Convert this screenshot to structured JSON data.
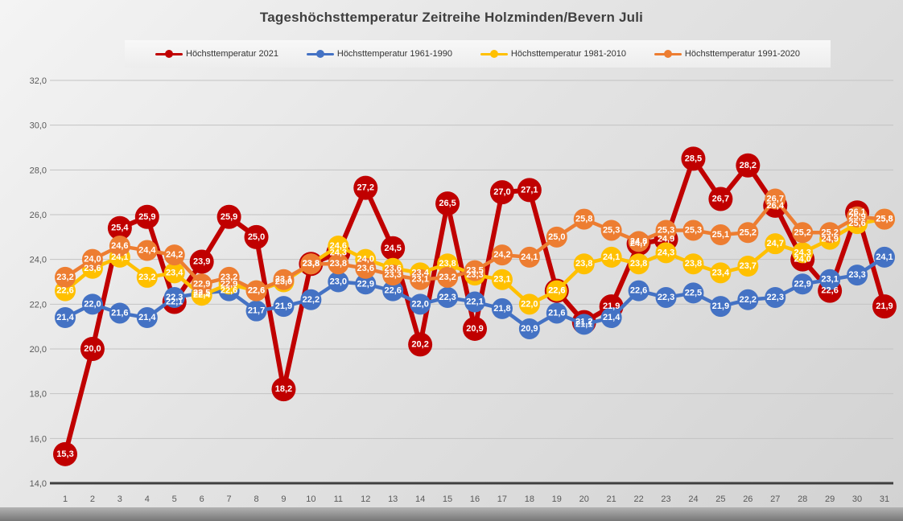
{
  "chart_data": {
    "type": "line",
    "title": "Tageshöchsttemperatur Zeitreihe Holzminden/Bevern Juli",
    "categories": [
      1,
      2,
      3,
      4,
      5,
      6,
      7,
      8,
      9,
      10,
      11,
      12,
      13,
      14,
      15,
      16,
      17,
      18,
      19,
      20,
      21,
      22,
      23,
      24,
      25,
      26,
      27,
      28,
      29,
      30,
      31
    ],
    "y_tick_labels": [
      "14,0",
      "16,0",
      "18,0",
      "20,0",
      "22,0",
      "24,0",
      "26,0",
      "28,0",
      "30,0",
      "32,0"
    ],
    "ylim": [
      14,
      32
    ],
    "ytick_step": 2,
    "grid": true,
    "legend_position": "top",
    "decimal_separator": ",",
    "axis_color": "#595959",
    "series": [
      {
        "name": "Höchsttemperatur 2021",
        "color": "#C00000",
        "values": [
          15.3,
          20.0,
          25.4,
          25.9,
          22.1,
          23.9,
          25.9,
          25.0,
          18.2,
          23.8,
          24.3,
          27.2,
          24.5,
          20.2,
          26.5,
          20.9,
          27.0,
          27.1,
          22.6,
          21.2,
          21.9,
          24.7,
          24.9,
          28.5,
          26.7,
          28.2,
          26.4,
          24.0,
          22.6,
          26.1,
          21.9
        ]
      },
      {
        "name": "Höchsttemperatur 1961-1990",
        "color": "#4472C4",
        "values": [
          21.4,
          22.0,
          21.6,
          21.4,
          22.3,
          22.5,
          22.6,
          21.7,
          21.9,
          22.2,
          23.0,
          22.9,
          22.6,
          22.0,
          22.3,
          22.1,
          21.8,
          20.9,
          21.6,
          21.1,
          21.4,
          22.6,
          22.3,
          22.5,
          21.9,
          22.2,
          22.3,
          22.9,
          23.1,
          23.3,
          24.1
        ]
      },
      {
        "name": "Höchsttemperatur 1981-2010",
        "color": "#FFC000",
        "values": [
          22.6,
          23.6,
          24.1,
          23.2,
          23.4,
          22.4,
          22.9,
          22.6,
          23.0,
          23.8,
          24.6,
          24.0,
          23.6,
          23.4,
          23.8,
          23.3,
          23.1,
          22.0,
          22.6,
          23.8,
          24.1,
          23.8,
          24.3,
          23.8,
          23.4,
          23.7,
          24.7,
          24.3,
          24.9,
          25.6,
          25.8
        ]
      },
      {
        "name": "Höchsttemperatur 1991-2020",
        "color": "#ED7D31",
        "values": [
          23.2,
          24.0,
          24.6,
          24.4,
          24.2,
          22.9,
          23.2,
          22.6,
          23.1,
          23.8,
          23.8,
          23.6,
          23.3,
          23.1,
          23.2,
          23.5,
          24.2,
          24.1,
          25.0,
          25.8,
          25.3,
          24.8,
          25.3,
          25.3,
          25.1,
          25.2,
          26.7,
          25.2,
          25.2,
          25.9,
          25.8
        ]
      }
    ]
  }
}
